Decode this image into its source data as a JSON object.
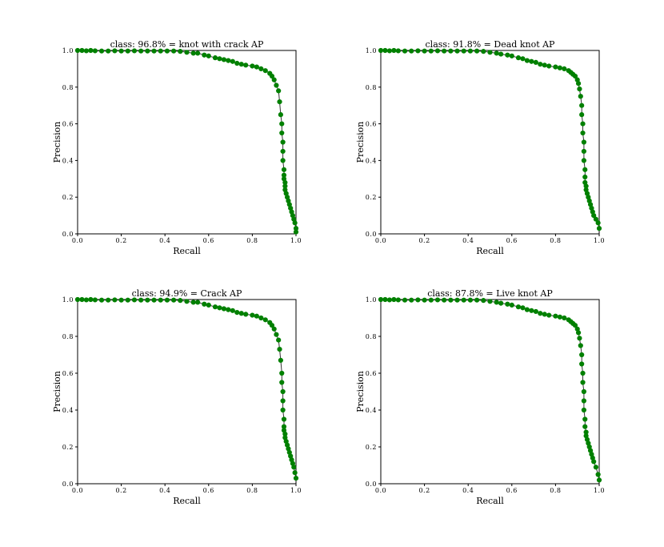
{
  "chart_data": [
    {
      "type": "line",
      "title": "class: 96.8% = knot with crack AP",
      "xlabel": "Recall",
      "ylabel": "Precision",
      "xlim": [
        0,
        1
      ],
      "ylim": [
        0,
        1
      ],
      "xticks": [
        "0.0",
        "0.2",
        "0.4",
        "0.6",
        "0.8",
        "1.0"
      ],
      "yticks": [
        "0.0",
        "0.2",
        "0.4",
        "0.6",
        "0.8",
        "1.0"
      ],
      "grid": false,
      "series": [
        {
          "color": "#008000",
          "marker": "circle",
          "line_color": "#333333",
          "x": [
            0.0,
            0.02,
            0.04,
            0.06,
            0.08,
            0.11,
            0.14,
            0.17,
            0.2,
            0.23,
            0.26,
            0.29,
            0.32,
            0.35,
            0.38,
            0.41,
            0.44,
            0.47,
            0.5,
            0.53,
            0.55,
            0.58,
            0.6,
            0.63,
            0.65,
            0.67,
            0.69,
            0.71,
            0.73,
            0.75,
            0.77,
            0.8,
            0.82,
            0.84,
            0.86,
            0.88,
            0.89,
            0.9,
            0.91,
            0.92,
            0.925,
            0.93,
            0.935,
            0.935,
            0.94,
            0.94,
            0.94,
            0.945,
            0.945,
            0.945,
            0.95,
            0.95,
            0.95,
            0.955,
            0.96,
            0.965,
            0.97,
            0.975,
            0.98,
            0.985,
            0.99,
            0.995,
            1.0,
            1.0
          ],
          "y": [
            1.0,
            1.0,
            0.998,
            1.0,
            0.998,
            0.997,
            0.997,
            0.998,
            0.997,
            0.997,
            0.998,
            0.997,
            0.997,
            0.997,
            0.997,
            0.997,
            0.997,
            0.995,
            0.99,
            0.985,
            0.985,
            0.975,
            0.97,
            0.96,
            0.955,
            0.95,
            0.945,
            0.94,
            0.93,
            0.925,
            0.92,
            0.915,
            0.91,
            0.9,
            0.89,
            0.875,
            0.86,
            0.84,
            0.81,
            0.78,
            0.72,
            0.65,
            0.6,
            0.55,
            0.5,
            0.45,
            0.4,
            0.35,
            0.32,
            0.3,
            0.28,
            0.26,
            0.24,
            0.22,
            0.2,
            0.18,
            0.16,
            0.14,
            0.12,
            0.1,
            0.08,
            0.06,
            0.03,
            0.01
          ]
        }
      ]
    },
    {
      "type": "line",
      "title": "class: 91.8% = Dead knot  AP",
      "xlabel": "Recall",
      "ylabel": "Precision",
      "xlim": [
        0,
        1
      ],
      "ylim": [
        0,
        1
      ],
      "xticks": [
        "0.0",
        "0.2",
        "0.4",
        "0.6",
        "0.8",
        "1.0"
      ],
      "yticks": [
        "0.0",
        "0.2",
        "0.4",
        "0.6",
        "0.8",
        "1.0"
      ],
      "grid": false,
      "series": [
        {
          "color": "#008000",
          "marker": "circle",
          "line_color": "#333333",
          "x": [
            0.0,
            0.02,
            0.04,
            0.06,
            0.08,
            0.11,
            0.14,
            0.17,
            0.2,
            0.23,
            0.26,
            0.29,
            0.32,
            0.35,
            0.38,
            0.41,
            0.44,
            0.47,
            0.5,
            0.53,
            0.55,
            0.58,
            0.6,
            0.63,
            0.65,
            0.67,
            0.69,
            0.71,
            0.73,
            0.75,
            0.77,
            0.8,
            0.82,
            0.84,
            0.86,
            0.87,
            0.88,
            0.89,
            0.9,
            0.905,
            0.91,
            0.915,
            0.92,
            0.92,
            0.925,
            0.925,
            0.93,
            0.93,
            0.93,
            0.935,
            0.935,
            0.935,
            0.94,
            0.94,
            0.945,
            0.95,
            0.955,
            0.96,
            0.965,
            0.97,
            0.975,
            0.985,
            0.995,
            1.0
          ],
          "y": [
            1.0,
            1.0,
            0.998,
            1.0,
            0.998,
            0.997,
            0.997,
            0.998,
            0.997,
            0.997,
            0.998,
            0.997,
            0.997,
            0.997,
            0.997,
            0.997,
            0.997,
            0.995,
            0.99,
            0.985,
            0.98,
            0.975,
            0.97,
            0.96,
            0.955,
            0.945,
            0.94,
            0.935,
            0.925,
            0.92,
            0.915,
            0.91,
            0.905,
            0.9,
            0.89,
            0.88,
            0.87,
            0.86,
            0.84,
            0.82,
            0.79,
            0.75,
            0.7,
            0.65,
            0.6,
            0.55,
            0.5,
            0.45,
            0.4,
            0.35,
            0.31,
            0.28,
            0.26,
            0.24,
            0.22,
            0.2,
            0.18,
            0.16,
            0.14,
            0.12,
            0.1,
            0.08,
            0.06,
            0.03
          ]
        }
      ]
    },
    {
      "type": "line",
      "title": "class: 94.9% = Crack  AP",
      "xlabel": "Recall",
      "ylabel": "Precision",
      "xlim": [
        0,
        1
      ],
      "ylim": [
        0,
        1
      ],
      "xticks": [
        "0.0",
        "0.2",
        "0.4",
        "0.6",
        "0.8",
        "1.0"
      ],
      "yticks": [
        "0.0",
        "0.2",
        "0.4",
        "0.6",
        "0.8",
        "1.0"
      ],
      "grid": false,
      "series": [
        {
          "color": "#008000",
          "marker": "circle",
          "line_color": "#333333",
          "x": [
            0.0,
            0.02,
            0.04,
            0.06,
            0.08,
            0.11,
            0.14,
            0.17,
            0.2,
            0.23,
            0.26,
            0.29,
            0.32,
            0.35,
            0.38,
            0.41,
            0.44,
            0.47,
            0.5,
            0.53,
            0.55,
            0.58,
            0.6,
            0.63,
            0.65,
            0.67,
            0.69,
            0.71,
            0.73,
            0.75,
            0.77,
            0.8,
            0.82,
            0.84,
            0.86,
            0.88,
            0.89,
            0.9,
            0.91,
            0.92,
            0.925,
            0.93,
            0.935,
            0.935,
            0.94,
            0.94,
            0.94,
            0.945,
            0.945,
            0.945,
            0.95,
            0.95,
            0.955,
            0.96,
            0.965,
            0.97,
            0.975,
            0.98,
            0.985,
            0.99,
            0.995,
            1.0
          ],
          "y": [
            1.0,
            1.0,
            0.998,
            1.0,
            0.998,
            0.997,
            0.997,
            0.998,
            0.997,
            0.997,
            0.998,
            0.997,
            0.997,
            0.997,
            0.997,
            0.997,
            0.997,
            0.995,
            0.99,
            0.985,
            0.985,
            0.975,
            0.97,
            0.96,
            0.955,
            0.95,
            0.945,
            0.94,
            0.93,
            0.925,
            0.92,
            0.915,
            0.91,
            0.9,
            0.89,
            0.875,
            0.86,
            0.84,
            0.81,
            0.78,
            0.73,
            0.67,
            0.6,
            0.55,
            0.5,
            0.45,
            0.4,
            0.35,
            0.31,
            0.29,
            0.27,
            0.25,
            0.23,
            0.21,
            0.19,
            0.17,
            0.15,
            0.13,
            0.11,
            0.09,
            0.06,
            0.03
          ]
        }
      ]
    },
    {
      "type": "line",
      "title": "class: 87.8% = Live knot  AP",
      "xlabel": "Recall",
      "ylabel": "Precision",
      "xlim": [
        0,
        1
      ],
      "ylim": [
        0,
        1
      ],
      "xticks": [
        "0.0",
        "0.2",
        "0.4",
        "0.6",
        "0.8",
        "1.0"
      ],
      "yticks": [
        "0.0",
        "0.2",
        "0.4",
        "0.6",
        "0.8",
        "1.0"
      ],
      "grid": false,
      "series": [
        {
          "color": "#008000",
          "marker": "circle",
          "line_color": "#333333",
          "x": [
            0.0,
            0.02,
            0.04,
            0.06,
            0.08,
            0.11,
            0.14,
            0.17,
            0.2,
            0.23,
            0.26,
            0.29,
            0.32,
            0.35,
            0.38,
            0.41,
            0.44,
            0.47,
            0.5,
            0.53,
            0.55,
            0.58,
            0.6,
            0.63,
            0.65,
            0.67,
            0.69,
            0.71,
            0.73,
            0.75,
            0.77,
            0.8,
            0.82,
            0.84,
            0.86,
            0.87,
            0.88,
            0.89,
            0.9,
            0.905,
            0.91,
            0.915,
            0.92,
            0.92,
            0.925,
            0.925,
            0.93,
            0.93,
            0.93,
            0.935,
            0.935,
            0.94,
            0.94,
            0.945,
            0.95,
            0.955,
            0.96,
            0.965,
            0.97,
            0.975,
            0.985,
            0.995,
            1.0
          ],
          "y": [
            1.0,
            1.0,
            0.998,
            1.0,
            0.998,
            0.997,
            0.997,
            0.998,
            0.997,
            0.997,
            0.998,
            0.997,
            0.997,
            0.997,
            0.997,
            0.997,
            0.997,
            0.995,
            0.99,
            0.985,
            0.98,
            0.975,
            0.97,
            0.96,
            0.955,
            0.945,
            0.94,
            0.935,
            0.925,
            0.92,
            0.915,
            0.91,
            0.905,
            0.9,
            0.89,
            0.88,
            0.87,
            0.86,
            0.84,
            0.82,
            0.79,
            0.75,
            0.7,
            0.65,
            0.6,
            0.55,
            0.5,
            0.45,
            0.4,
            0.35,
            0.31,
            0.28,
            0.26,
            0.24,
            0.22,
            0.2,
            0.18,
            0.16,
            0.14,
            0.12,
            0.09,
            0.05,
            0.02
          ]
        }
      ]
    }
  ]
}
